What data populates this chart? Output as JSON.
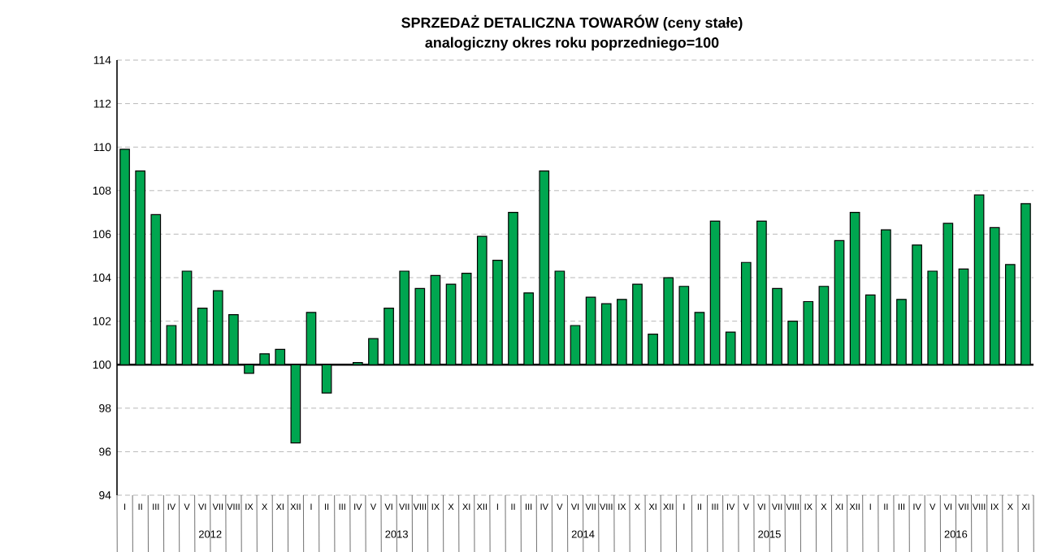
{
  "chart_data": {
    "type": "bar",
    "title": "SPRZEDAŻ DETALICZNA TOWARÓW  (ceny stałe)",
    "subtitle": "analogiczny okres roku poprzedniego=100",
    "categories": [
      "I",
      "II",
      "III",
      "IV",
      "V",
      "VI",
      "VII",
      "VIII",
      "IX",
      "X",
      "XI",
      "XII",
      "I",
      "II",
      "III",
      "IV",
      "V",
      "VI",
      "VII",
      "VIII",
      "IX",
      "X",
      "XI",
      "XII",
      "I",
      "II",
      "III",
      "IV",
      "V",
      "VI",
      "VII",
      "VIII",
      "IX",
      "X",
      "XI",
      "XII",
      "I",
      "II",
      "III",
      "IV",
      "V",
      "VI",
      "VII",
      "VIII",
      "IX",
      "X",
      "XI",
      "XII",
      "I",
      "II",
      "III",
      "IV",
      "V",
      "VI",
      "VII",
      "VIII",
      "IX",
      "X",
      "XI"
    ],
    "base": [
      100,
      100,
      100,
      100,
      100,
      100,
      100,
      100,
      100,
      100,
      100,
      100,
      100,
      100,
      null,
      100,
      100,
      100,
      100,
      100,
      100,
      100,
      100,
      100,
      100,
      100,
      100,
      100,
      100,
      100,
      100,
      100,
      100,
      100,
      100,
      100,
      100,
      100,
      100,
      100,
      100,
      100,
      100,
      100,
      100,
      100,
      100,
      100,
      100,
      100,
      100,
      100,
      100,
      100,
      100,
      100,
      100,
      100,
      100
    ],
    "values": [
      9.9,
      8.9,
      6.9,
      1.8,
      4.3,
      2.6,
      3.4,
      2.3,
      -0.4,
      0.5,
      0.7,
      -3.6,
      2.4,
      -1.3,
      null,
      0.1,
      1.2,
      2.6,
      4.3,
      3.5,
      4.1,
      3.7,
      4.2,
      5.9,
      4.8,
      7.0,
      3.3,
      8.9,
      4.3,
      1.8,
      3.1,
      2.8,
      3.0,
      3.7,
      1.4,
      4.0,
      3.6,
      2.4,
      6.6,
      1.5,
      4.7,
      6.6,
      3.5,
      2.0,
      2.9,
      3.6,
      5.7,
      7.0,
      3.2,
      6.2,
      3.0,
      5.5,
      4.3,
      6.5,
      4.4,
      7.8,
      6.3,
      4.6,
      7.4
    ],
    "color": "#00a650",
    "annotations": [
      "2012",
      "2013",
      "2014",
      "2015",
      "2016"
    ],
    "ylim": [
      94,
      114
    ],
    "yticks": [
      94,
      96,
      98,
      100,
      102,
      104,
      106,
      108,
      110,
      112,
      114
    ],
    "ref_lines": [
      {
        "axis": "y",
        "value": 100,
        "color": "#000000"
      }
    ],
    "grid": "y"
  }
}
